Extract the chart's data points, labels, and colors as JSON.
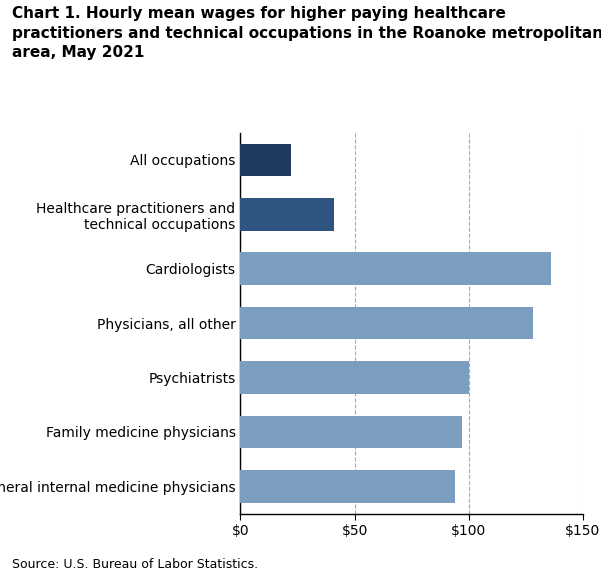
{
  "categories": [
    "General internal medicine physicians",
    "Family medicine physicians",
    "Psychiatrists",
    "Physicians, all other",
    "Cardiologists",
    "Healthcare practitioners and\ntechnical occupations",
    "All occupations"
  ],
  "values": [
    94,
    97,
    100,
    128,
    136,
    41,
    22
  ],
  "bar_colors": [
    "#7B9DC0",
    "#7B9DC0",
    "#7B9DC0",
    "#7B9DC0",
    "#7B9DC0",
    "#2E5480",
    "#1E3A5F"
  ],
  "title_line1": "Chart 1. Hourly mean wages for higher paying healthcare",
  "title_line2": "practitioners and technical occupations in the Roanoke metropolitan",
  "title_line3": "area, May 2021",
  "xlim": [
    0,
    150
  ],
  "xticks": [
    0,
    50,
    100,
    150
  ],
  "xticklabels": [
    "$0",
    "$50",
    "$100",
    "$150"
  ],
  "source_text": "Source: U.S. Bureau of Labor Statistics.",
  "title_fontsize": 11.0,
  "tick_fontsize": 10,
  "label_fontsize": 10,
  "source_fontsize": 9,
  "background_color": "#ffffff",
  "bar_height": 0.6,
  "grid_color": "#aaaaaa",
  "spine_color": "#000000"
}
